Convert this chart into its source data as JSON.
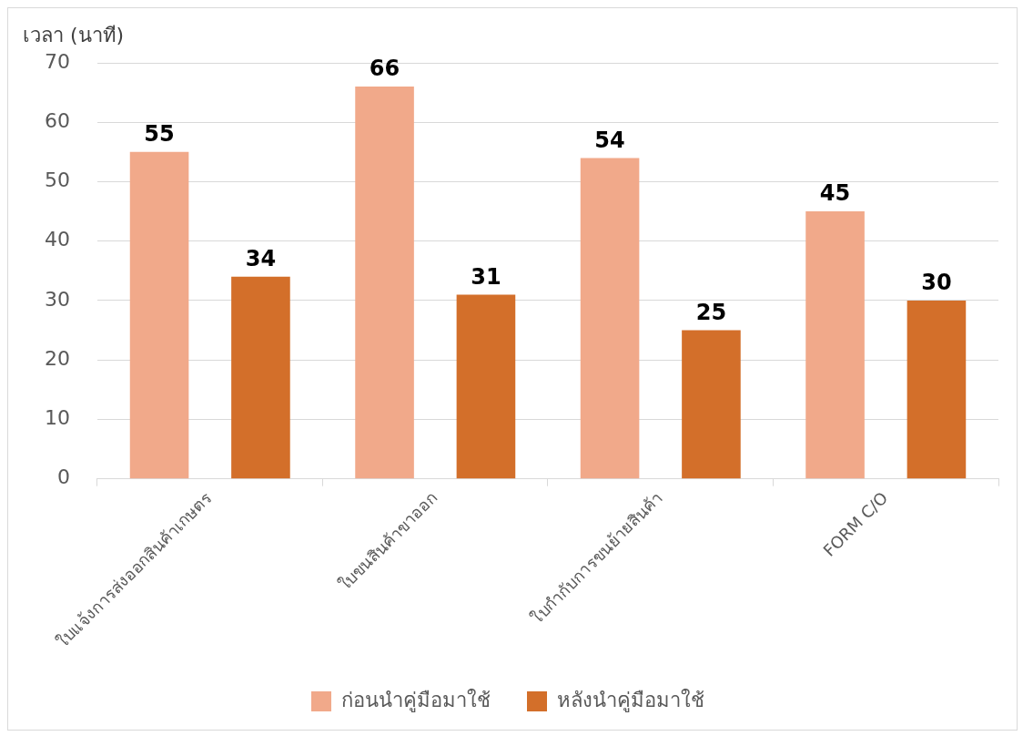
{
  "chart_data": {
    "type": "bar",
    "ylabel": "เวลา (นาที)",
    "categories": [
      "ใบแจ้งการส่งออกสินค้าเกษตร",
      "ใบขนสินค้าขาออก",
      "ใบกำกับการขนย้ายสินค้า",
      "FORM C/O"
    ],
    "series": [
      {
        "name": "ก่อนนำคู่มือมาใช้",
        "color": "#f1a98a",
        "values": [
          55,
          66,
          54,
          45
        ]
      },
      {
        "name": "หลังนำคู่มือมาใช้",
        "color": "#d36f2a",
        "values": [
          34,
          31,
          25,
          30
        ]
      }
    ],
    "ylim": [
      0,
      70
    ],
    "yticks": [
      0,
      10,
      20,
      30,
      40,
      50,
      60,
      70
    ],
    "grid": "y",
    "legend": "bottom",
    "data_labels": true
  }
}
